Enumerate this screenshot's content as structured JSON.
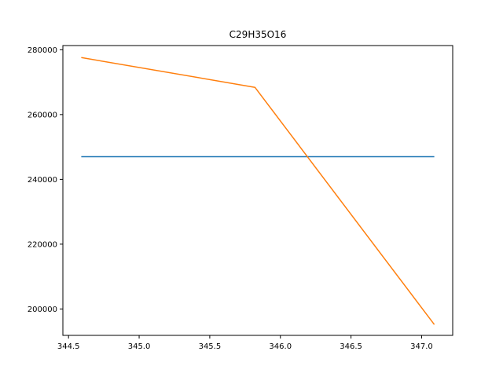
{
  "chart_data": {
    "type": "line",
    "title": "C29H35O16",
    "xlabel": "",
    "ylabel": "",
    "xlim": [
      344.46,
      347.22
    ],
    "ylim": [
      191850,
      281300
    ],
    "x_ticks": [
      344.5,
      345.0,
      345.5,
      346.0,
      346.5,
      347.0
    ],
    "x_tick_labels": [
      "344.5",
      "345.0",
      "345.5",
      "346.0",
      "346.5",
      "347.0"
    ],
    "y_ticks": [
      200000,
      220000,
      240000,
      260000,
      280000
    ],
    "y_tick_labels": [
      "200000",
      "220000",
      "240000",
      "260000",
      "280000"
    ],
    "grid": false,
    "series": [
      {
        "color": "#1f77b4",
        "x": [
          344.59,
          347.09
        ],
        "y": [
          247000,
          247000
        ]
      },
      {
        "color": "#ff7f0e",
        "x": [
          344.59,
          345.82,
          347.09
        ],
        "y": [
          277600,
          268400,
          195200
        ]
      }
    ]
  }
}
